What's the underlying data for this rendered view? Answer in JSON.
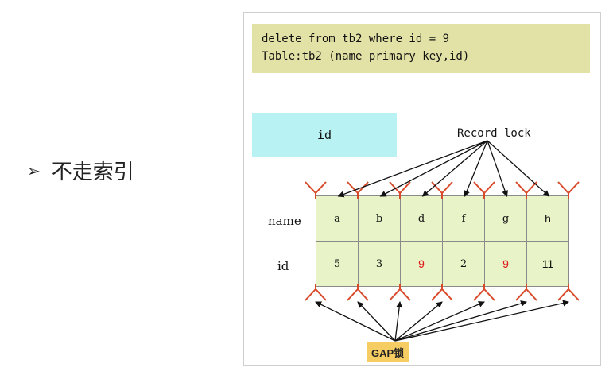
{
  "bullet": {
    "marker": "➢",
    "text": "不走索引"
  },
  "diagram": {
    "sql_lines": [
      "delete from tb2 where id = 9",
      "Table:tb2 (name primary key,id)"
    ],
    "id_box_label": "id",
    "record_lock_label": "Record lock",
    "gap_lock_label": "GAP锁",
    "row_labels": {
      "name": "name",
      "id": "id"
    },
    "columns": [
      {
        "name": "a",
        "id": "5",
        "highlight": false
      },
      {
        "name": "b",
        "id": "3",
        "highlight": false
      },
      {
        "name": "d",
        "id": "9",
        "highlight": true
      },
      {
        "name": "f",
        "id": "2",
        "highlight": false
      },
      {
        "name": "g",
        "id": "9",
        "highlight": true
      },
      {
        "name": "h",
        "id": "11",
        "highlight": false
      }
    ],
    "colors": {
      "sql_bg": "#e2e2a6",
      "id_box_bg": "#b9f2f2",
      "cell_bg": "#e8f3c8",
      "highlight": "#e01a1a",
      "gap_bg": "#f6cd62",
      "lock_marker": "#d84a2a"
    }
  }
}
